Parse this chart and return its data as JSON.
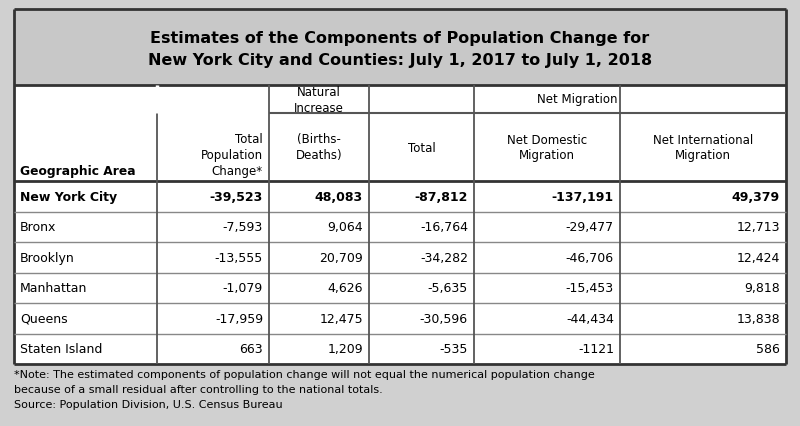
{
  "title_line1": "Estimates of the Components of Population Change for",
  "title_line2": "New York City and Counties: July 1, 2017 to July 1, 2018",
  "title_bg_color": "#c8c8c8",
  "table_bg_color": "#ffffff",
  "outer_bg_color": "#d0d0d0",
  "rows": [
    [
      "New York City",
      "-39,523",
      "48,083",
      "-87,812",
      "-137,191",
      "49,379"
    ],
    [
      "Bronx",
      "-7,593",
      "9,064",
      "-16,764",
      "-29,477",
      "12,713"
    ],
    [
      "Brooklyn",
      "-13,555",
      "20,709",
      "-34,282",
      "-46,706",
      "12,424"
    ],
    [
      "Manhattan",
      "-1,079",
      "4,626",
      "-5,635",
      "-15,453",
      "9,818"
    ],
    [
      "Queens",
      "-17,959",
      "12,475",
      "-30,596",
      "-44,434",
      "13,838"
    ],
    [
      "Staten Island",
      "663",
      "1,209",
      "-535",
      "-1121",
      "586"
    ]
  ],
  "footnote1": "*Note: The estimated components of population change will not equal the numerical population change",
  "footnote2": "because of a small residual after controlling to the national totals.",
  "footnote3": "Source: Population Division, U.S. Census Bureau",
  "col_aligns": [
    "left",
    "right",
    "right",
    "right",
    "right",
    "right"
  ],
  "border_color": "#555555",
  "line_color": "#888888",
  "thick_line_color": "#333333"
}
